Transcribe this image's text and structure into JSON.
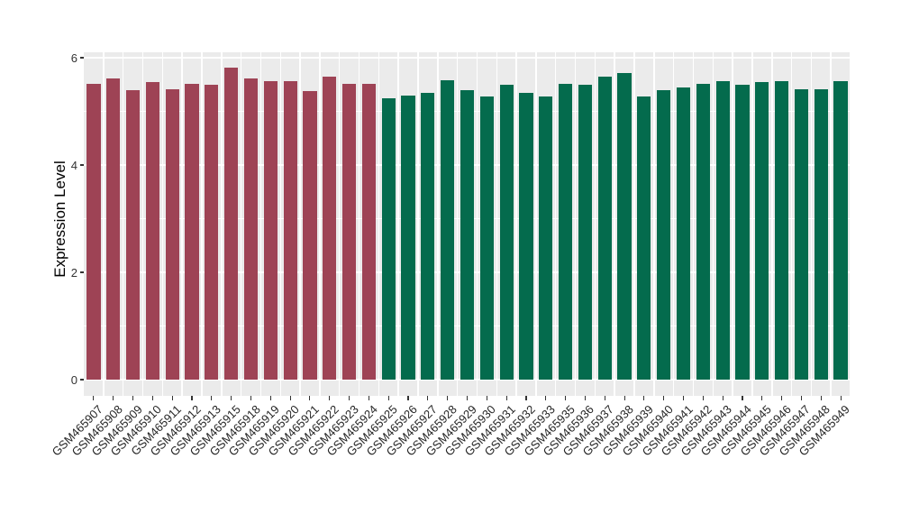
{
  "chart_data": {
    "type": "bar",
    "title": "",
    "xlabel": "",
    "ylabel": "Expression Level",
    "ylim": [
      0,
      6.11
    ],
    "yticks_major": [
      0,
      2,
      4,
      6
    ],
    "yticks_minor": [
      1,
      3,
      5
    ],
    "grid": "on",
    "legend_position": "none",
    "categories": [
      "GSM465907",
      "GSM465908",
      "GSM465909",
      "GSM465910",
      "GSM465911",
      "GSM465912",
      "GSM465913",
      "GSM465915",
      "GSM465918",
      "GSM465919",
      "GSM465920",
      "GSM465921",
      "GSM465922",
      "GSM465923",
      "GSM465924",
      "GSM465925",
      "GSM465926",
      "GSM465927",
      "GSM465928",
      "GSM465929",
      "GSM465930",
      "GSM465931",
      "GSM465932",
      "GSM465933",
      "GSM465935",
      "GSM465936",
      "GSM465937",
      "GSM465938",
      "GSM465939",
      "GSM465940",
      "GSM465941",
      "GSM465942",
      "GSM465943",
      "GSM465944",
      "GSM465945",
      "GSM465946",
      "GSM465947",
      "GSM465948",
      "GSM465949"
    ],
    "values": [
      5.51,
      5.61,
      5.4,
      5.54,
      5.42,
      5.52,
      5.5,
      5.82,
      5.61,
      5.57,
      5.56,
      5.38,
      5.65,
      5.51,
      5.52,
      5.25,
      5.29,
      5.35,
      5.58,
      5.39,
      5.28,
      5.49,
      5.35,
      5.28,
      5.51,
      5.5,
      5.65,
      5.71,
      5.28,
      5.39,
      5.45,
      5.52,
      5.56,
      5.49,
      5.54,
      5.57,
      5.41,
      5.42,
      5.57
    ],
    "fill_groups": [
      {
        "name": "group-1",
        "color": "#9E4355",
        "start_index": 0,
        "end_index": 14
      },
      {
        "name": "group-2",
        "color": "#046B4D",
        "start_index": 15,
        "end_index": 38
      }
    ]
  },
  "colors": {
    "panel_background": "#EBEBEB",
    "gridline": "#FFFFFF",
    "axis_text": "#333333",
    "x_axis_text": "#262626",
    "axis_title": "#000000",
    "tick_mark": "#333333",
    "page_background": "#FFFFFF"
  }
}
